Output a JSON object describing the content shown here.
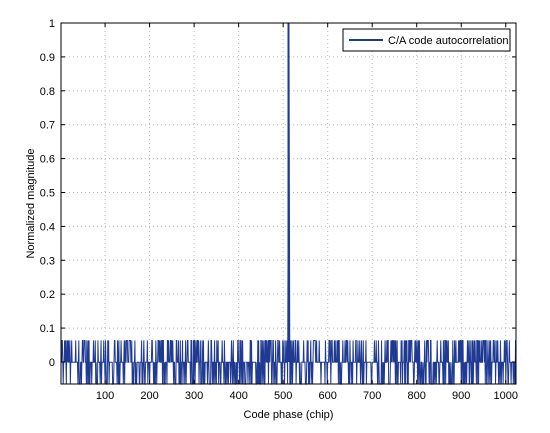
{
  "chart_data": {
    "type": "line",
    "title": "",
    "xlabel": "Code phase (chip)",
    "ylabel": "Normalized magnitude",
    "xlim": [
      1,
      1023
    ],
    "ylim": [
      -0.065,
      1
    ],
    "grid": true,
    "legend_position": "top-right",
    "x_ticks": [
      100,
      200,
      300,
      400,
      500,
      600,
      700,
      800,
      900,
      1000
    ],
    "x_tick_labels": [
      "100",
      "200",
      "300",
      "400",
      "500",
      "600",
      "700",
      "800",
      "900",
      "1000"
    ],
    "y_ticks": [
      0,
      0.1,
      0.2,
      0.3,
      0.4,
      0.5,
      0.6,
      0.7,
      0.8,
      0.9,
      1
    ],
    "y_tick_labels": [
      "0",
      "0.1",
      "0.2",
      "0.3",
      "0.4",
      "0.5",
      "0.6",
      "0.7",
      "0.8",
      "0.9",
      "1"
    ],
    "series": [
      {
        "name": "C/A code autocorrelation",
        "color": "#1f3a93",
        "peak": {
          "x": 512,
          "y": 1
        },
        "sidelobe_levels": [
          0.0635,
          -0.001,
          -0.0655
        ]
      }
    ]
  }
}
